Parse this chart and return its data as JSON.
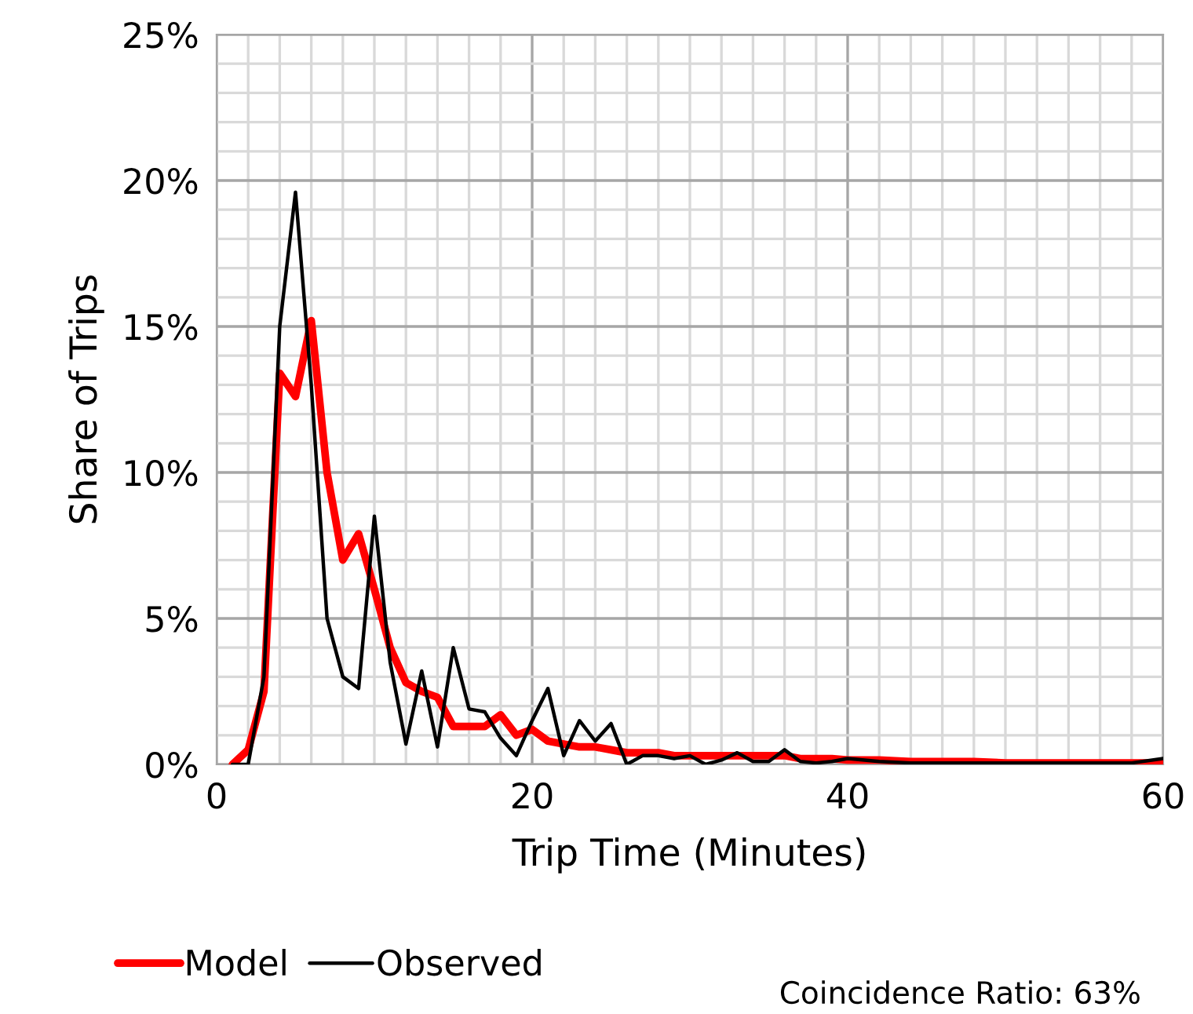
{
  "chart_data": {
    "type": "line",
    "xlabel": "Trip Time (Minutes)",
    "ylabel": "Share of Trips",
    "x": [
      1,
      2,
      3,
      4,
      5,
      6,
      7,
      8,
      9,
      10,
      11,
      12,
      13,
      14,
      15,
      16,
      17,
      18,
      19,
      20,
      21,
      22,
      23,
      24,
      25,
      26,
      27,
      28,
      29,
      30,
      31,
      32,
      33,
      34,
      35,
      36,
      37,
      38,
      39,
      40,
      42,
      44,
      46,
      48,
      50,
      52,
      54,
      56,
      58,
      60
    ],
    "series": [
      {
        "name": "Model",
        "color": "#ff0000",
        "values": [
          0,
          0.5,
          2.5,
          13.4,
          12.6,
          15.2,
          10,
          7,
          7.9,
          6,
          4,
          2.8,
          2.5,
          2.3,
          1.3,
          1.3,
          1.3,
          1.7,
          1.0,
          1.2,
          0.8,
          0.7,
          0.6,
          0.6,
          0.5,
          0.4,
          0.4,
          0.4,
          0.3,
          0.3,
          0.3,
          0.3,
          0.3,
          0.3,
          0.3,
          0.3,
          0.2,
          0.2,
          0.2,
          0.15,
          0.15,
          0.1,
          0.1,
          0.1,
          0.05,
          0.05,
          0.05,
          0.05,
          0.05,
          0.05
        ]
      },
      {
        "name": "Observed",
        "color": "#000000",
        "values": [
          0,
          0,
          3,
          15,
          19.6,
          13,
          5,
          3,
          2.6,
          8.5,
          3.5,
          0.7,
          3.2,
          0.6,
          4.0,
          1.9,
          1.8,
          0.9,
          0.3,
          1.5,
          2.6,
          0.3,
          1.5,
          0.8,
          1.4,
          0,
          0.3,
          0.3,
          0.2,
          0.3,
          0,
          0.15,
          0.4,
          0.1,
          0.1,
          0.5,
          0.1,
          0.05,
          0.1,
          0.2,
          0.1,
          0.05,
          0.05,
          0.05,
          0.05,
          0.05,
          0.05,
          0.05,
          0.05,
          0.2
        ]
      }
    ],
    "xlim": [
      0,
      60
    ],
    "xticks": [
      0,
      {
        "value": 2,
        "label": null
      },
      {
        "value": 4,
        "label": null
      },
      {
        "value": 6,
        "label": null
      },
      {
        "value": 8,
        "label": null
      },
      {
        "value": 10,
        "label": null
      },
      {
        "value": 12,
        "label": null
      },
      {
        "value": 14,
        "label": null
      },
      {
        "value": 16,
        "label": null
      },
      {
        "value": 18,
        "label": null
      },
      20,
      {
        "value": 22,
        "label": null
      },
      {
        "value": 24,
        "label": null
      },
      {
        "value": 26,
        "label": null
      },
      {
        "value": 28,
        "label": null
      },
      {
        "value": 30,
        "label": null
      },
      {
        "value": 32,
        "label": null
      },
      {
        "value": 34,
        "label": null
      },
      {
        "value": 36,
        "label": null
      },
      {
        "value": 38,
        "label": null
      },
      40,
      {
        "value": 42,
        "label": null
      },
      {
        "value": 44,
        "label": null
      },
      {
        "value": 46,
        "label": null
      },
      {
        "value": 48,
        "label": null
      },
      {
        "value": 50,
        "label": null
      },
      {
        "value": 52,
        "label": null
      },
      {
        "value": 54,
        "label": null
      },
      {
        "value": 56,
        "label": null
      },
      {
        "value": 58,
        "label": null
      },
      60
    ],
    "ylim": [
      0,
      25
    ],
    "yticks": [
      {
        "value": 0,
        "label": "0%"
      },
      {
        "value": 1,
        "label": null
      },
      {
        "value": 2,
        "label": null
      },
      {
        "value": 3,
        "label": null
      },
      {
        "value": 4,
        "label": null
      },
      {
        "value": 5,
        "label": "5%"
      },
      {
        "value": 6,
        "label": null
      },
      {
        "value": 7,
        "label": null
      },
      {
        "value": 8,
        "label": null
      },
      {
        "value": 9,
        "label": null
      },
      {
        "value": 10,
        "label": "10%"
      },
      {
        "value": 11,
        "label": null
      },
      {
        "value": 12,
        "label": null
      },
      {
        "value": 13,
        "label": null
      },
      {
        "value": 14,
        "label": null
      },
      {
        "value": 15,
        "label": "15%"
      },
      {
        "value": 16,
        "label": null
      },
      {
        "value": 17,
        "label": null
      },
      {
        "value": 18,
        "label": null
      },
      {
        "value": 19,
        "label": null
      },
      {
        "value": 20,
        "label": "20%"
      },
      {
        "value": 21,
        "label": null
      },
      {
        "value": 22,
        "label": null
      },
      {
        "value": 23,
        "label": null
      },
      {
        "value": 24,
        "label": null
      },
      {
        "value": 25,
        "label": "25%"
      }
    ],
    "grid": true,
    "legend": "bottom left",
    "marker": "none",
    "line_style": "solid",
    "annotations": [
      "Coincidence Ratio: 63%"
    ]
  }
}
